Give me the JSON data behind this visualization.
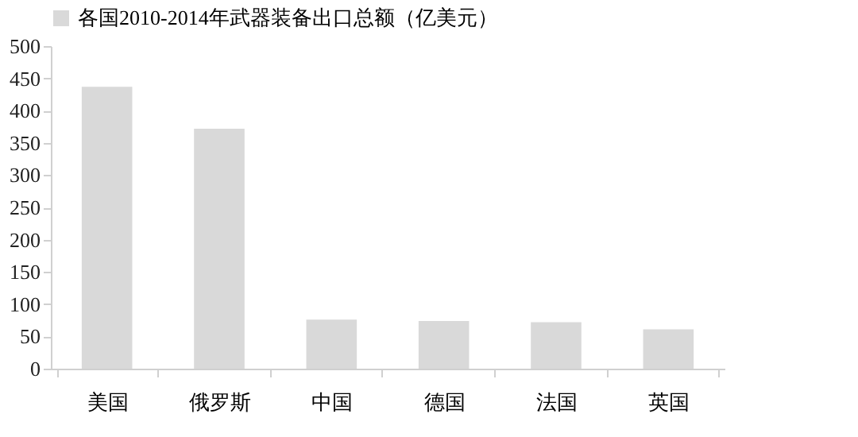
{
  "chart_data": {
    "type": "bar",
    "categories": [
      "美国",
      "俄罗斯",
      "中国",
      "德国",
      "法国",
      "英国"
    ],
    "series": [
      {
        "name": "各国2010-2014年武器装备出口总额（亿美元）",
        "color": "#d9d9d9",
        "values": [
          437,
          372,
          76,
          74,
          72,
          61
        ]
      }
    ],
    "ylim": [
      0,
      500
    ],
    "yticks": [
      0,
      50,
      100,
      150,
      200,
      250,
      300,
      350,
      400,
      450,
      500
    ],
    "grid": false,
    "legend": "top"
  }
}
